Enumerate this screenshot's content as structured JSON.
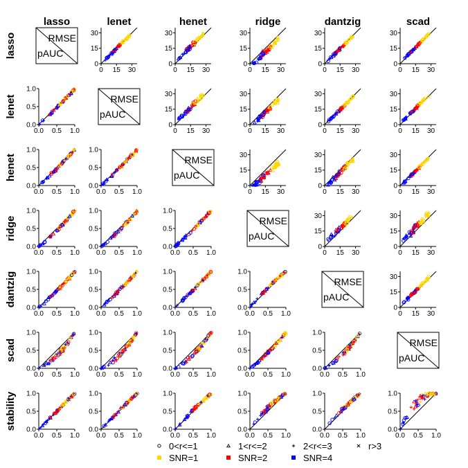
{
  "chart_data": {
    "type": "scatter",
    "methods": [
      "lasso",
      "lenet",
      "henet",
      "ridge",
      "dantzig",
      "scad",
      "stability"
    ],
    "column_methods": [
      "lasso",
      "lenet",
      "henet",
      "ridge",
      "dantzig",
      "scad"
    ],
    "diagonal_labels": {
      "upper": "RMSE",
      "lower": "pAUC"
    },
    "upper_panels": {
      "metric": "RMSE",
      "xlim": [
        0,
        35
      ],
      "ylim": [
        0,
        35
      ],
      "xticks": [
        "0",
        "15",
        "30"
      ],
      "yticks": [
        "0",
        "15",
        "30"
      ],
      "reference_line": "y=x"
    },
    "lower_panels": {
      "metric": "pAUC",
      "xlim": [
        0,
        1
      ],
      "ylim": [
        0,
        1
      ],
      "xticks": [
        "0.0",
        "0.5",
        "1.0"
      ],
      "yticks": [
        "0.0",
        "0.5",
        "1.0"
      ],
      "reference_line": "y=x"
    },
    "rmse_offsets": {
      "lasso": 0,
      "lenet": 0,
      "henet": -2.5,
      "ridge": 4.5,
      "dantzig": 0.5,
      "scad": -1.5
    },
    "pauc_bulge": {
      "lasso": -0.03,
      "lenet": -0.02,
      "henet": 0.0,
      "ridge": 0.06,
      "dantzig": 0.02,
      "scad": 0.24,
      "stability": -0.07
    },
    "legend": {
      "markers": [
        {
          "symbol": "circle",
          "label": "0<r<=1"
        },
        {
          "symbol": "triangle",
          "label": "1<r<=2"
        },
        {
          "symbol": "plus",
          "label": "2<r<=3"
        },
        {
          "symbol": "cross",
          "label": "r>3"
        }
      ],
      "colors": [
        {
          "label": "SNR=1",
          "color": "#FFD700"
        },
        {
          "label": "SNR=2",
          "color": "#FF0000"
        },
        {
          "label": "SNR=4",
          "color": "#0000FF"
        }
      ]
    }
  }
}
